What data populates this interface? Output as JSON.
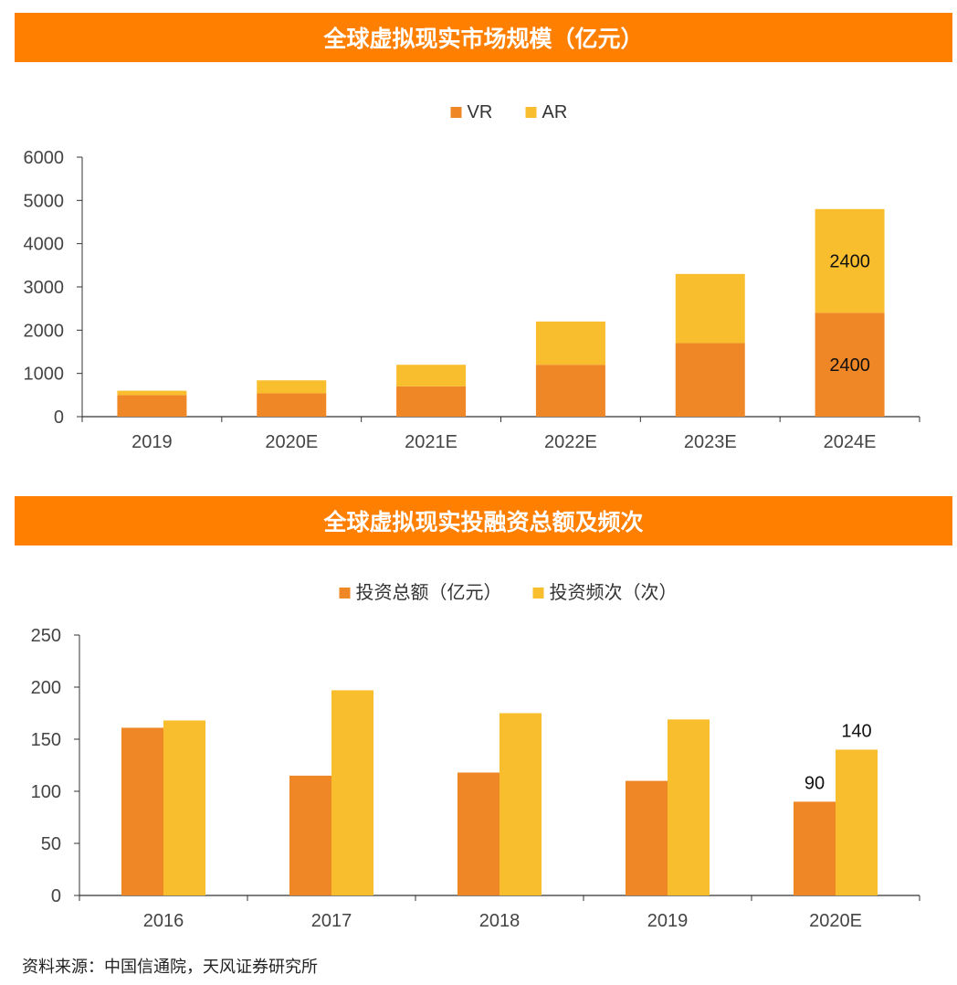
{
  "colors": {
    "banner": "#FF7F00",
    "series_primary": "#F08726",
    "series_secondary": "#F9BE2E",
    "axis": "#333333"
  },
  "chart_data": [
    {
      "type": "bar",
      "stacked": true,
      "title": "全球虚拟现实市场规模（亿元）",
      "categories": [
        "2019",
        "2020E",
        "2021E",
        "2022E",
        "2023E",
        "2024E"
      ],
      "series": [
        {
          "name": "VR",
          "values": [
            500,
            540,
            700,
            1200,
            1700,
            2400
          ]
        },
        {
          "name": "AR",
          "values": [
            100,
            300,
            500,
            1000,
            1600,
            2400
          ]
        }
      ],
      "data_labels": [
        {
          "series": 1,
          "index": 5,
          "text": "2400"
        },
        {
          "series": 0,
          "index": 5,
          "text": "2400"
        }
      ],
      "ylim": [
        0,
        6000
      ],
      "yticks": [
        0,
        1000,
        2000,
        3000,
        4000,
        5000,
        6000
      ],
      "legend_position": "top-center",
      "xlabel": "",
      "ylabel": ""
    },
    {
      "type": "bar",
      "stacked": false,
      "title": "全球虚拟现实投融资总额及频次",
      "categories": [
        "2016",
        "2017",
        "2018",
        "2019",
        "2020E"
      ],
      "series": [
        {
          "name": "投资总额（亿元）",
          "values": [
            161,
            115,
            118,
            110,
            90
          ]
        },
        {
          "name": "投资频次（次）",
          "values": [
            168,
            197,
            175,
            169,
            140
          ]
        }
      ],
      "data_labels": [
        {
          "series": 0,
          "index": 4,
          "text": "90"
        },
        {
          "series": 1,
          "index": 4,
          "text": "140"
        }
      ],
      "ylim": [
        0,
        250
      ],
      "yticks": [
        0,
        50,
        100,
        150,
        200,
        250
      ],
      "legend_position": "top-center",
      "xlabel": "",
      "ylabel": ""
    }
  ],
  "source": "资料来源：中国信通院，天风证券研究所"
}
